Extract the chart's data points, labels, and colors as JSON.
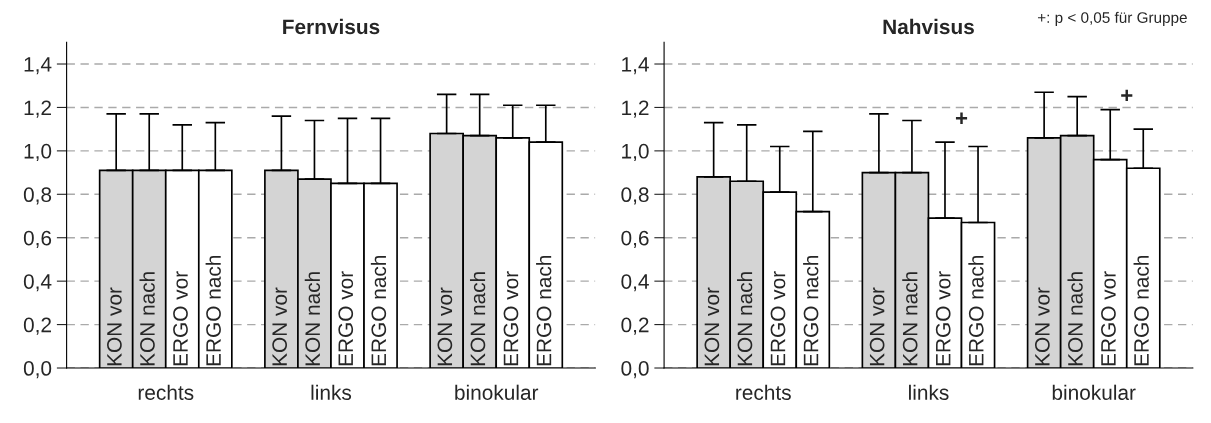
{
  "chart_data": [
    {
      "type": "bar",
      "title": "Fernvisus",
      "categories": [
        "rechts",
        "links",
        "binokular"
      ],
      "series": [
        {
          "name": "KON vor",
          "color": "#d4d4d4",
          "values": [
            0.91,
            0.91,
            1.08
          ],
          "errors": [
            [
              0.91,
              1.17
            ],
            [
              0.91,
              1.16
            ],
            [
              1.08,
              1.26
            ]
          ]
        },
        {
          "name": "KON nach",
          "color": "#d4d4d4",
          "values": [
            0.91,
            0.87,
            1.07
          ],
          "errors": [
            [
              0.91,
              1.17
            ],
            [
              0.87,
              1.14
            ],
            [
              1.07,
              1.26
            ]
          ]
        },
        {
          "name": "ERGO vor",
          "color": "#ffffff",
          "values": [
            0.91,
            0.85,
            1.06
          ],
          "errors": [
            [
              0.91,
              1.12
            ],
            [
              0.85,
              1.15
            ],
            [
              1.06,
              1.21
            ]
          ]
        },
        {
          "name": "ERGO nach",
          "color": "#ffffff",
          "values": [
            0.91,
            0.85,
            1.04
          ],
          "errors": [
            [
              0.91,
              1.13
            ],
            [
              0.85,
              1.15
            ],
            [
              1.04,
              1.21
            ]
          ]
        }
      ],
      "ylim": [
        0,
        1.5
      ],
      "yticks": [
        {
          "value": 0,
          "label": "0,0"
        },
        {
          "value": 0.2,
          "label": "0,2"
        },
        {
          "value": 0.4,
          "label": "0,4"
        },
        {
          "value": 0.6,
          "label": "0,6"
        },
        {
          "value": 0.8,
          "label": "0,8"
        },
        {
          "value": 1.0,
          "label": "1,0"
        },
        {
          "value": 1.2,
          "label": "1,2"
        },
        {
          "value": 1.4,
          "label": "1,4"
        }
      ],
      "grid": "y",
      "legend": false
    },
    {
      "type": "bar",
      "title": "Nahvisus",
      "categories": [
        "rechts",
        "links",
        "binokular"
      ],
      "series": [
        {
          "name": "KON vor",
          "color": "#d4d4d4",
          "values": [
            0.88,
            0.9,
            1.06
          ],
          "errors": [
            [
              0.88,
              1.13
            ],
            [
              0.9,
              1.17
            ],
            [
              1.06,
              1.27
            ]
          ]
        },
        {
          "name": "KON nach",
          "color": "#d4d4d4",
          "values": [
            0.86,
            0.9,
            1.07
          ],
          "errors": [
            [
              0.86,
              1.12
            ],
            [
              0.9,
              1.14
            ],
            [
              1.07,
              1.25
            ]
          ]
        },
        {
          "name": "ERGO vor",
          "color": "#ffffff",
          "values": [
            0.81,
            0.69,
            0.96
          ],
          "errors": [
            [
              0.81,
              1.02
            ],
            [
              0.69,
              1.04
            ],
            [
              0.96,
              1.19
            ]
          ]
        },
        {
          "name": "ERGO nach",
          "color": "#ffffff",
          "values": [
            0.72,
            0.67,
            0.92
          ],
          "errors": [
            [
              0.72,
              1.09
            ],
            [
              0.67,
              1.02
            ],
            [
              0.92,
              1.1
            ]
          ]
        }
      ],
      "ylim": [
        0,
        1.5
      ],
      "yticks": [
        {
          "value": 0,
          "label": "0,0"
        },
        {
          "value": 0.2,
          "label": "0,2"
        },
        {
          "value": 0.4,
          "label": "0,4"
        },
        {
          "value": 0.6,
          "label": "0,6"
        },
        {
          "value": 0.8,
          "label": "0,8"
        },
        {
          "value": 1.0,
          "label": "1,0"
        },
        {
          "value": 1.2,
          "label": "1,2"
        },
        {
          "value": 1.4,
          "label": "1,4"
        }
      ],
      "grid": "y",
      "legend": false,
      "annotations": [
        "+: p < 0,05 für Gruppe",
        "+",
        "+"
      ]
    }
  ]
}
